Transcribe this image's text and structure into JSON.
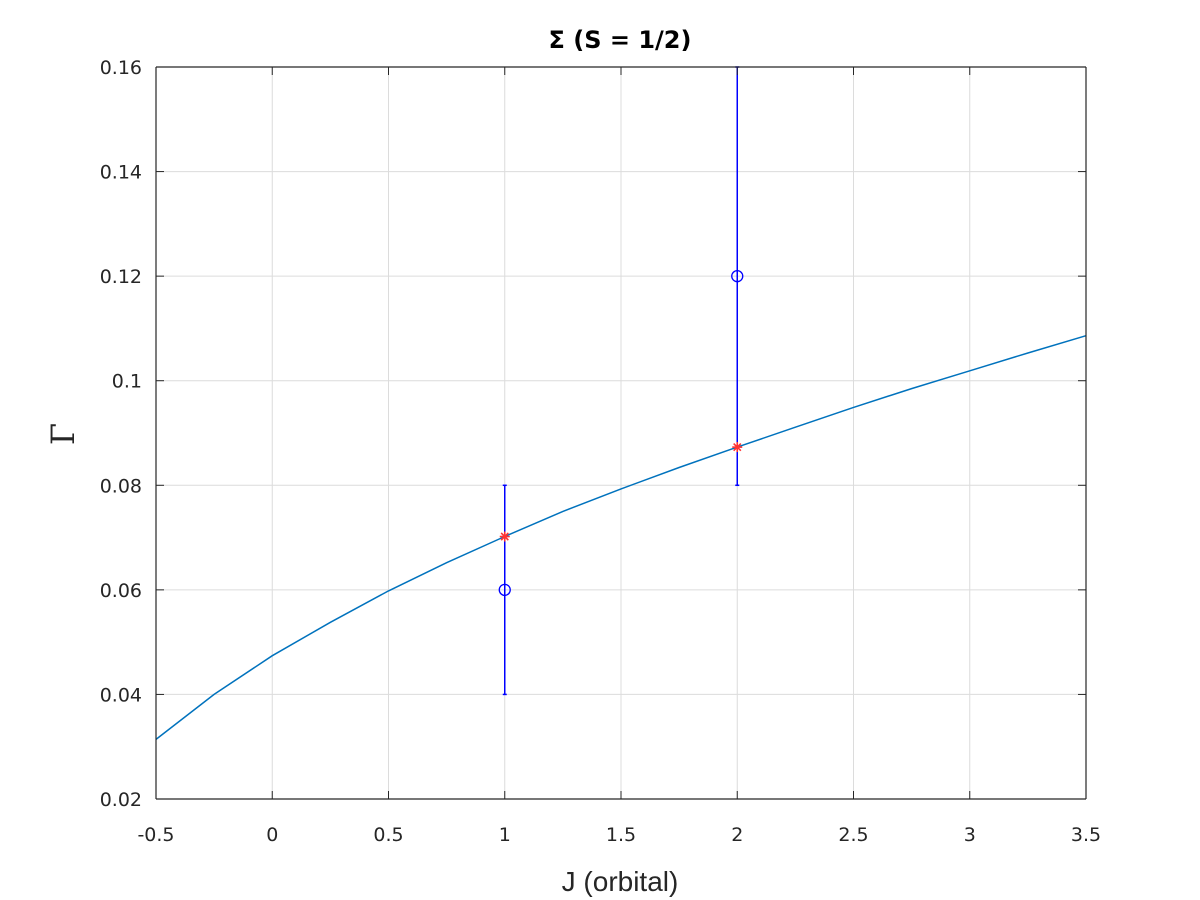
{
  "chart_data": {
    "type": "scatter",
    "title": "Σ (S = 1/2)",
    "xlabel": "J (orbital)",
    "ylabel": "Γ",
    "xlim": [
      -0.5,
      3.5
    ],
    "ylim": [
      0.02,
      0.16
    ],
    "xticks": [
      "-0.5",
      "0",
      "0.5",
      "1",
      "1.5",
      "2",
      "2.5",
      "3",
      "3.5"
    ],
    "yticks": [
      "0.02",
      "0.04",
      "0.06",
      "0.08",
      "0.1",
      "0.12",
      "0.14",
      "0.16"
    ],
    "grid": true,
    "series": [
      {
        "kind": "errorbar",
        "marker": "circle",
        "color": "#0000ff",
        "points": [
          {
            "x": 1,
            "y": 0.06,
            "low": 0.04,
            "high": 0.08
          },
          {
            "x": 2,
            "y": 0.12,
            "low": 0.08,
            "high": 0.16
          }
        ]
      },
      {
        "kind": "markers",
        "marker": "asterisk",
        "color": "#ff3333",
        "points": [
          {
            "x": 1,
            "y": 0.0702
          },
          {
            "x": 2,
            "y": 0.0873
          }
        ]
      },
      {
        "kind": "line",
        "color": "#0072bd",
        "x": [
          -0.5,
          -0.25,
          0,
          0.25,
          0.5,
          0.75,
          1,
          1.25,
          1.5,
          1.75,
          2,
          2.25,
          2.5,
          2.75,
          3,
          3.25,
          3.5
        ],
        "y": [
          0.0314,
          0.04,
          0.0474,
          0.0538,
          0.0598,
          0.0652,
          0.0702,
          0.075,
          0.0793,
          0.0834,
          0.0873,
          0.0911,
          0.0949,
          0.0985,
          0.1019,
          0.1053,
          0.1086
        ]
      }
    ]
  },
  "colors": {
    "axis": "#262626",
    "grid": "#dcdcdc"
  }
}
